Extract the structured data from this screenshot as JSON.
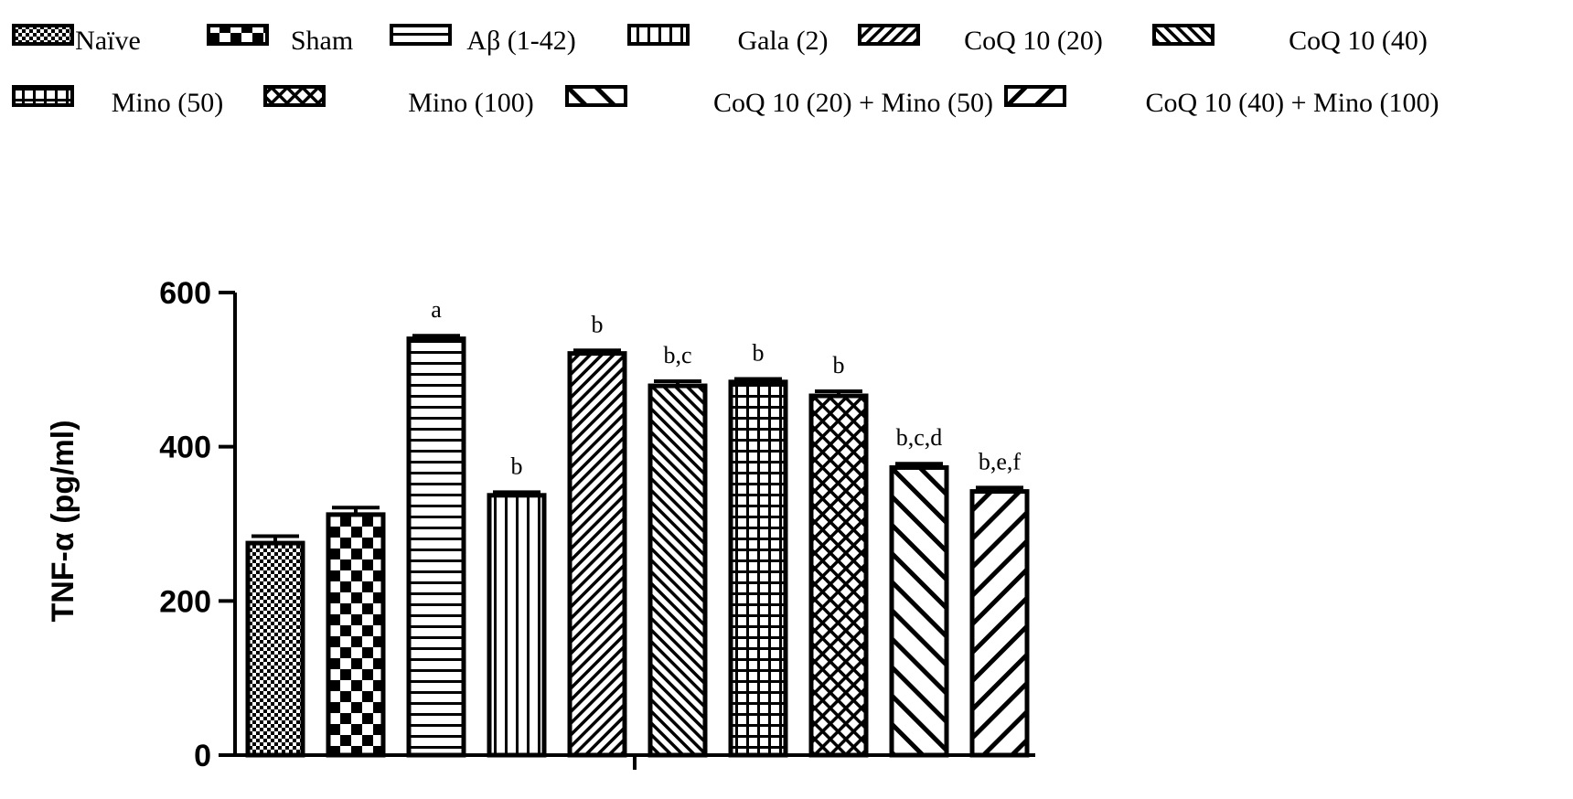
{
  "chart_data": {
    "type": "bar",
    "title": "",
    "xlabel": "",
    "ylabel": "TNF-α (pg/ml)",
    "ylim": [
      0,
      600
    ],
    "yticks": [
      0,
      200,
      400,
      600
    ],
    "grid": false,
    "legend_position": "top",
    "categories": [
      "Naïve",
      "Sham",
      "Aβ (1-42)",
      "Gala (2)",
      "CoQ 10 (20)",
      "CoQ 10 (40)",
      "Mino (50)",
      "Mino (100)",
      "CoQ 10 (20) + Mino (50)",
      "CoQ 10 (40) + Mino (100)"
    ],
    "values": [
      275,
      312,
      540,
      337,
      521,
      479,
      484,
      466,
      373,
      342
    ],
    "errors": [
      9,
      9,
      4,
      4,
      4,
      6,
      4,
      6,
      5,
      5
    ],
    "annotations": [
      "",
      "",
      "a",
      "b",
      "b",
      "b,c",
      "b",
      "b",
      "b,c,d",
      "b,e,f"
    ],
    "patterns": [
      "dots",
      "checker",
      "hlines",
      "vlines",
      "diag-fine",
      "diag-back",
      "grid",
      "diamond",
      "back-wide",
      "fwd-wide"
    ]
  }
}
